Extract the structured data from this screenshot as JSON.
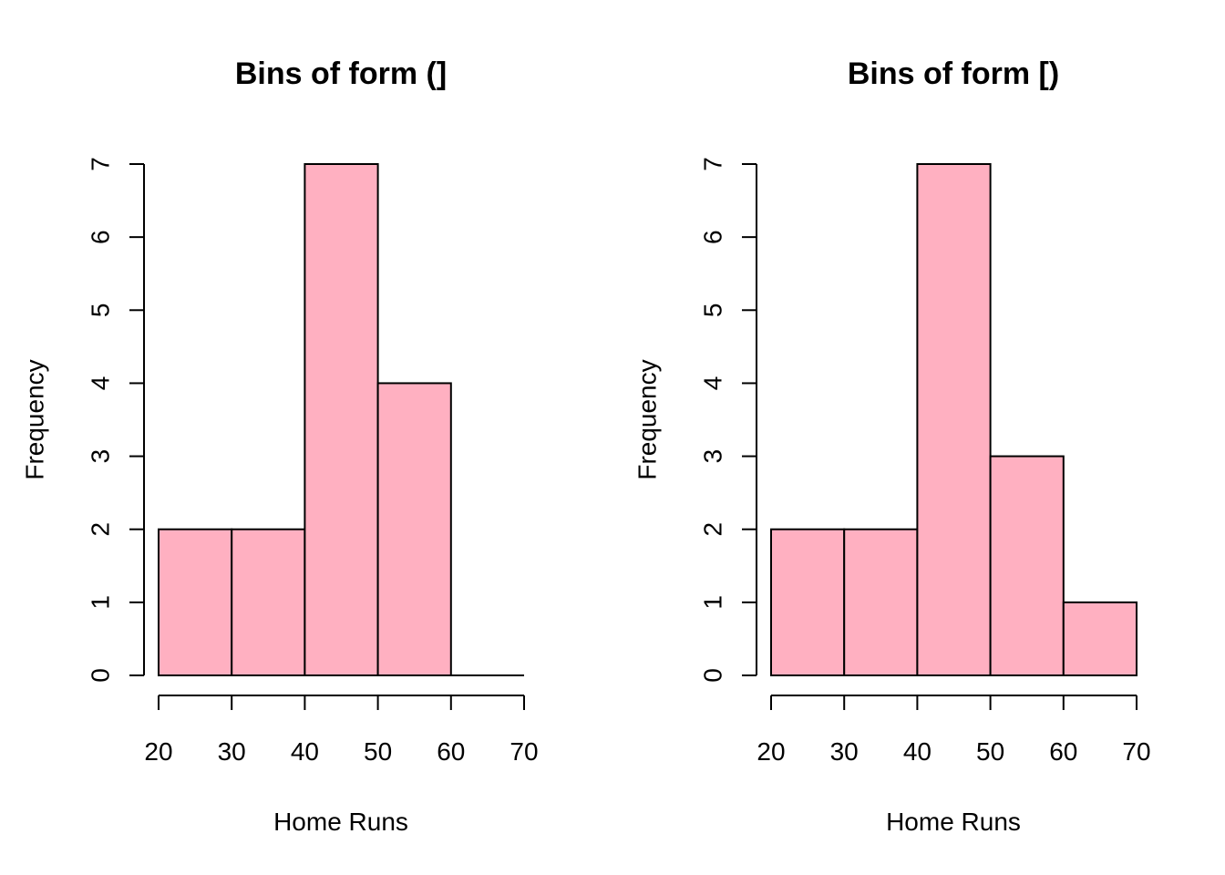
{
  "chart_data": [
    {
      "type": "bar",
      "title": "Bins of form (]",
      "xlabel": "Home Runs",
      "ylabel": "Frequency",
      "bins": [
        [
          20,
          30
        ],
        [
          30,
          40
        ],
        [
          40,
          50
        ],
        [
          50,
          60
        ],
        [
          60,
          70
        ]
      ],
      "values": [
        2,
        2,
        7,
        4,
        0
      ],
      "xlim": [
        20,
        70
      ],
      "ylim": [
        0,
        7
      ],
      "x_ticks": [
        20,
        30,
        40,
        50,
        60,
        70
      ],
      "y_ticks": [
        0,
        1,
        2,
        3,
        4,
        5,
        6,
        7
      ],
      "bar_color": "#ffb0c1",
      "grid": false
    },
    {
      "type": "bar",
      "title": "Bins of form [)",
      "xlabel": "Home Runs",
      "ylabel": "Frequency",
      "bins": [
        [
          20,
          30
        ],
        [
          30,
          40
        ],
        [
          40,
          50
        ],
        [
          50,
          60
        ],
        [
          60,
          70
        ]
      ],
      "values": [
        2,
        2,
        7,
        3,
        1
      ],
      "xlim": [
        20,
        70
      ],
      "ylim": [
        0,
        7
      ],
      "x_ticks": [
        20,
        30,
        40,
        50,
        60,
        70
      ],
      "y_ticks": [
        0,
        1,
        2,
        3,
        4,
        5,
        6,
        7
      ],
      "bar_color": "#ffb0c1",
      "grid": false
    }
  ]
}
